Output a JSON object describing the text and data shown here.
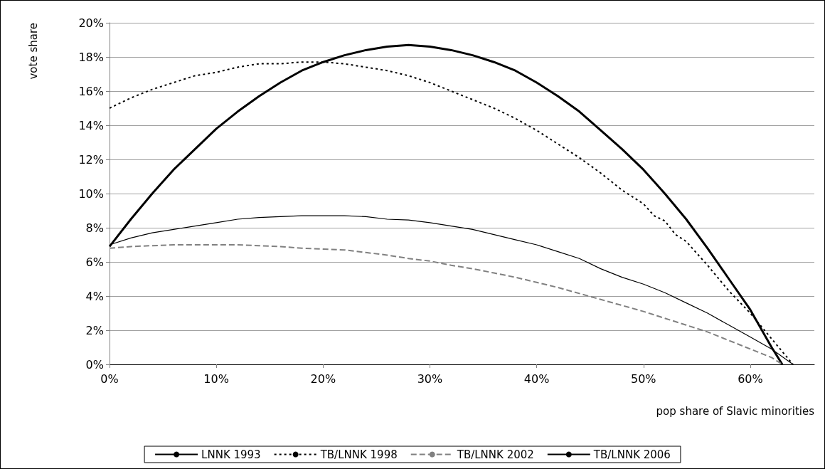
{
  "chart_data": {
    "type": "line",
    "xlabel": "pop share of Slavic minorities",
    "ylabel": "vote share",
    "xlim": [
      0,
      66
    ],
    "xticks": [
      {
        "value": 0,
        "label": "0%"
      },
      {
        "value": 10,
        "label": "10%"
      },
      {
        "value": 20,
        "label": "20%"
      },
      {
        "value": 30,
        "label": "30%"
      },
      {
        "value": 40,
        "label": "40%"
      },
      {
        "value": 50,
        "label": "50%"
      },
      {
        "value": 60,
        "label": "60%"
      }
    ],
    "ylim": [
      0,
      20
    ],
    "yticks": [
      {
        "value": 0,
        "label": "0%"
      },
      {
        "value": 2,
        "label": "2%"
      },
      {
        "value": 4,
        "label": "4%"
      },
      {
        "value": 6,
        "label": "6%"
      },
      {
        "value": 8,
        "label": "8%"
      },
      {
        "value": 10,
        "label": "10%"
      },
      {
        "value": 12,
        "label": "12%"
      },
      {
        "value": 14,
        "label": "14%"
      },
      {
        "value": 16,
        "label": "16%"
      },
      {
        "value": 18,
        "label": "18%"
      },
      {
        "value": 20,
        "label": "20%"
      }
    ],
    "grid": "y",
    "legend": "bottom",
    "marker": "none",
    "series": [
      {
        "name": "LNNK 1993",
        "color": "#000000",
        "line_style": "solid",
        "x": [
          0,
          2,
          4,
          6,
          8,
          10,
          12,
          14,
          16,
          18,
          20,
          22,
          24,
          26,
          28,
          30,
          32,
          34,
          36,
          38,
          40,
          42,
          44,
          46,
          48,
          50,
          52,
          54,
          56,
          58,
          60,
          62,
          63
        ],
        "values": [
          6.9,
          8.5,
          10.0,
          11.4,
          12.6,
          13.8,
          14.8,
          15.7,
          16.5,
          17.2,
          17.7,
          18.1,
          18.4,
          18.6,
          18.7,
          18.6,
          18.4,
          18.1,
          17.7,
          17.2,
          16.5,
          15.7,
          14.8,
          13.7,
          12.6,
          11.4,
          10.0,
          8.5,
          6.8,
          5.0,
          3.2,
          1.0,
          0
        ]
      },
      {
        "name": "TB/LNNK 1998",
        "color": "#000000",
        "line_style": "dotted",
        "x": [
          0,
          2,
          4,
          6,
          8,
          10,
          12,
          14,
          16,
          18,
          20,
          22,
          24,
          26,
          28,
          30,
          32,
          34,
          36,
          38,
          40,
          42,
          44,
          46,
          48,
          50,
          51,
          52,
          53,
          54,
          56,
          58,
          60,
          62,
          64
        ],
        "values": [
          15.0,
          15.6,
          16.1,
          16.5,
          16.9,
          17.1,
          17.4,
          17.6,
          17.6,
          17.7,
          17.7,
          17.6,
          17.4,
          17.2,
          16.9,
          16.5,
          16.0,
          15.5,
          15.0,
          14.4,
          13.7,
          12.9,
          12.1,
          11.2,
          10.2,
          9.4,
          8.7,
          8.4,
          7.6,
          7.2,
          5.8,
          4.3,
          3.0,
          1.5,
          0
        ]
      },
      {
        "name": "TB/LNNK 2002",
        "color": "#808080",
        "line_style": "dashed",
        "x": [
          0,
          2,
          4,
          6,
          8,
          10,
          12,
          14,
          16,
          18,
          20,
          22,
          24,
          26,
          28,
          30,
          32,
          34,
          36,
          38,
          40,
          42,
          44,
          46,
          48,
          50,
          52,
          54,
          56,
          58,
          60,
          62,
          63
        ],
        "values": [
          6.8,
          6.9,
          6.95,
          7.0,
          7.0,
          7.0,
          7.0,
          6.95,
          6.9,
          6.8,
          6.75,
          6.7,
          6.55,
          6.4,
          6.2,
          6.05,
          5.8,
          5.6,
          5.35,
          5.1,
          4.8,
          4.5,
          4.15,
          3.8,
          3.45,
          3.1,
          2.7,
          2.3,
          1.9,
          1.4,
          0.9,
          0.4,
          0
        ]
      },
      {
        "name": "TB/LNNK 2006",
        "color": "#000000",
        "line_style": "solid",
        "x": [
          0,
          2,
          4,
          6,
          8,
          10,
          12,
          14,
          16,
          18,
          20,
          22,
          24,
          26,
          28,
          30,
          32,
          34,
          36,
          38,
          40,
          42,
          44,
          46,
          48,
          50,
          52,
          54,
          56,
          58,
          60,
          62,
          64
        ],
        "values": [
          7.0,
          7.4,
          7.7,
          7.9,
          8.1,
          8.3,
          8.5,
          8.6,
          8.65,
          8.7,
          8.7,
          8.7,
          8.65,
          8.5,
          8.45,
          8.3,
          8.1,
          7.9,
          7.6,
          7.3,
          7.0,
          6.6,
          6.2,
          5.6,
          5.1,
          4.7,
          4.2,
          3.6,
          3.0,
          2.3,
          1.6,
          0.9,
          0
        ]
      }
    ]
  }
}
